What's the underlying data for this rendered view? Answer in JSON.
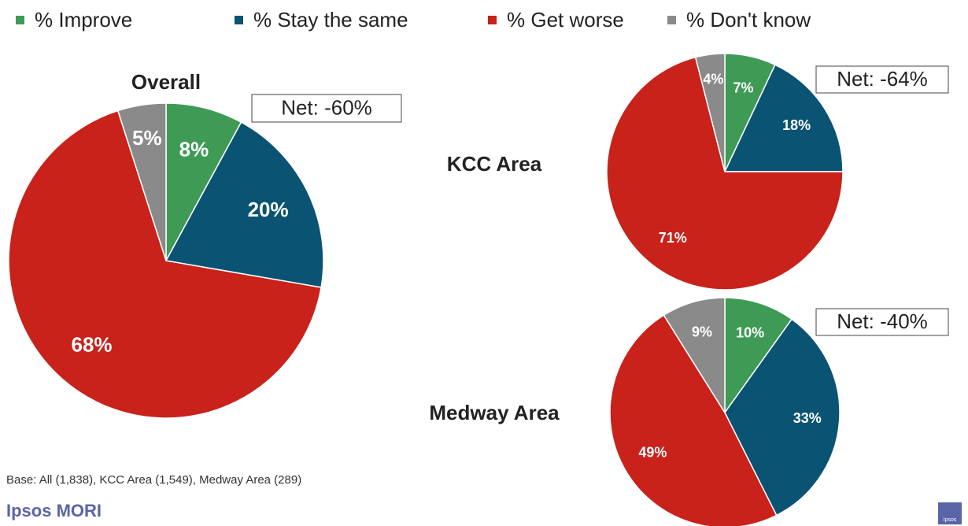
{
  "categories": [
    "% Improve",
    "% Stay the same",
    "% Get worse",
    "% Don't know"
  ],
  "colors": [
    "#3f9a56",
    "#0b5372",
    "#c8221a",
    "#8a8a8a"
  ],
  "chart_data": [
    {
      "type": "pie",
      "title": "Overall",
      "annotation": "Net: -60%",
      "values": [
        8,
        20,
        68,
        5
      ],
      "value_labels": [
        "8%",
        "20%",
        "68%",
        "5%"
      ]
    },
    {
      "type": "pie",
      "title": "KCC Area",
      "annotation": "Net: -64%",
      "values": [
        7,
        18,
        71,
        4
      ],
      "value_labels": [
        "7%",
        "18%",
        "71%",
        "4%"
      ]
    },
    {
      "type": "pie",
      "title": "Medway Area",
      "annotation": "Net: -40%",
      "values": [
        10,
        33,
        49,
        9
      ],
      "value_labels": [
        "10%",
        "33%",
        "49%",
        "9%"
      ]
    }
  ],
  "footnote": "Base: All (1,838), KCC Area (1,549), Medway Area (289)",
  "brand": "Ipsos MORI",
  "logo": "Ipsos"
}
